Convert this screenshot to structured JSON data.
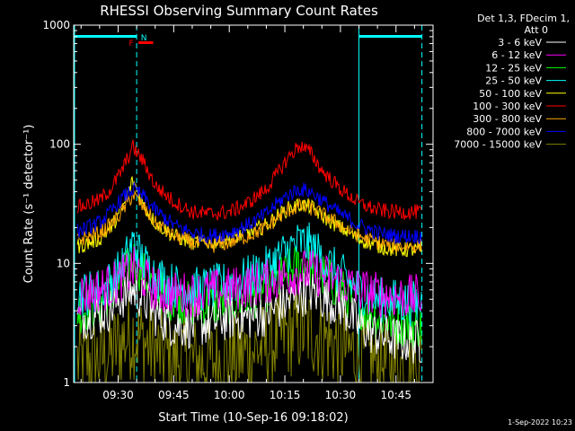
{
  "chart_data": {
    "type": "line",
    "title": "RHESSI Observing Summary Count Rates",
    "xlabel": "Start Time (10-Sep-16 09:18:02)",
    "ylabel": "Count Rate (s⁻¹ detector⁻¹)",
    "y_scale": "log",
    "ylim": [
      1,
      1000
    ],
    "xlim": [
      "09:18",
      "10:55"
    ],
    "x_ticks": [
      "09:30",
      "09:45",
      "10:00",
      "10:15",
      "10:30",
      "10:45"
    ],
    "y_ticks": [
      "1",
      "10",
      "100",
      "1000"
    ],
    "legend": {
      "placement": "right-outside",
      "header": [
        "Det 1,3, FDecim 1,",
        "Att 0"
      ]
    },
    "flags": {
      "night": [
        {
          "start": "09:18",
          "end": "09:35"
        },
        {
          "start": "10:35",
          "end": "10:52"
        }
      ],
      "night_label": "N",
      "flare_label": "F",
      "flare": {
        "start": "09:35",
        "end": "09:38"
      },
      "boundaries": [
        "09:35",
        "10:35",
        "10:52"
      ]
    },
    "x": [
      "09:20",
      "09:25",
      "09:28",
      "09:31",
      "09:34",
      "09:37",
      "09:40",
      "09:45",
      "09:50",
      "09:55",
      "10:00",
      "10:05",
      "10:10",
      "10:13",
      "10:16",
      "10:19",
      "10:22",
      "10:25",
      "10:30",
      "10:35",
      "10:40",
      "10:45",
      "10:50"
    ],
    "series": [
      {
        "name": "3 - 6 keV",
        "color": "#ffffff",
        "values": [
          3.5,
          3.8,
          4.2,
          5.2,
          6.0,
          5.0,
          3.8,
          3.0,
          3.0,
          3.2,
          3.5,
          3.5,
          3.8,
          4.2,
          4.8,
          5.5,
          5.8,
          5.2,
          4.5,
          3.0,
          2.5,
          2.3,
          2.2
        ]
      },
      {
        "name": "6 - 12 keV",
        "color": "#ff00ff",
        "values": [
          5.5,
          6.0,
          6.5,
          7.5,
          9.0,
          7.5,
          6.0,
          5.5,
          5.5,
          5.8,
          6.0,
          6.5,
          7.0,
          7.5,
          8.0,
          8.5,
          8.5,
          8.0,
          7.0,
          6.0,
          5.5,
          5.3,
          5.2
        ]
      },
      {
        "name": "12 - 25 keV",
        "color": "#00ff00",
        "values": [
          4.0,
          4.5,
          5.5,
          7.0,
          11.0,
          8.0,
          6.0,
          5.0,
          4.5,
          4.5,
          4.8,
          5.0,
          6.0,
          7.0,
          8.5,
          10.0,
          9.5,
          8.0,
          6.0,
          4.5,
          3.5,
          3.2,
          3.0
        ]
      },
      {
        "name": "25 - 50 keV",
        "color": "#00ffff",
        "values": [
          5.5,
          6.0,
          7.0,
          9.0,
          15.0,
          10.0,
          8.0,
          6.5,
          6.0,
          6.2,
          6.8,
          7.5,
          9.0,
          11.0,
          13.0,
          15.0,
          14.0,
          11.0,
          8.0,
          6.0,
          5.0,
          4.8,
          4.6
        ]
      },
      {
        "name": "50 - 100 keV",
        "color": "#ffff00",
        "values": [
          14,
          16,
          20,
          28,
          50,
          30,
          22,
          17,
          15,
          15,
          16,
          18,
          21,
          25,
          29,
          31,
          30,
          25,
          20,
          16,
          14,
          13,
          13
        ]
      },
      {
        "name": "100 - 300 keV",
        "color": "#ff0000",
        "values": [
          30,
          34,
          42,
          60,
          95,
          70,
          45,
          33,
          27,
          26,
          27,
          32,
          42,
          57,
          78,
          98,
          85,
          60,
          42,
          32,
          28,
          27,
          27
        ]
      },
      {
        "name": "300 - 800 keV",
        "color": "#ffa500",
        "values": [
          16,
          18,
          21,
          27,
          38,
          29,
          22,
          17,
          15,
          14,
          15,
          17,
          20,
          24,
          28,
          30,
          29,
          26,
          21,
          17,
          15,
          14,
          14
        ]
      },
      {
        "name": "800 - 7000 keV",
        "color": "#0000ff",
        "values": [
          19,
          22,
          27,
          35,
          42,
          36,
          28,
          21,
          18,
          17,
          18,
          21,
          26,
          32,
          38,
          42,
          40,
          34,
          26,
          21,
          18,
          17,
          17
        ]
      },
      {
        "name": "7000 - 15000 keV",
        "color": "#808000",
        "values": [
          1.5,
          1.6,
          1.8,
          2.2,
          2.6,
          2.2,
          1.8,
          1.6,
          1.5,
          1.5,
          1.6,
          1.8,
          2.0,
          2.3,
          2.6,
          2.8,
          2.7,
          2.4,
          2.0,
          1.7,
          1.5,
          1.4,
          1.4
        ]
      }
    ]
  },
  "footer": {
    "timestamp": "1-Sep-2022 10:23"
  }
}
